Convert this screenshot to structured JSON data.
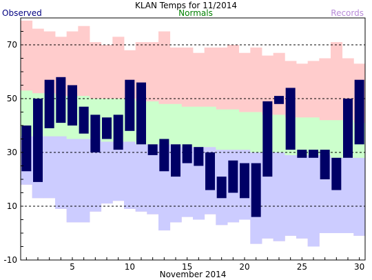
{
  "chart_data": {
    "type": "bar",
    "title": "KLAN Temps for 11/2014",
    "xlabel": "November 2014",
    "ylabel": "",
    "ylim": [
      -10,
      80
    ],
    "xlim": [
      0.5,
      30.5
    ],
    "y_ticks": [
      "-10",
      "10",
      "30",
      "50",
      "70"
    ],
    "x_ticks": [
      "5",
      "10",
      "15",
      "20",
      "25",
      "30"
    ],
    "grid": "horizontal dashed at y ticks",
    "legend": [
      {
        "label": "Observed",
        "color": "#000080",
        "placement": "top-left"
      },
      {
        "label": "Normals",
        "color": "#008000",
        "placement": "top-center"
      },
      {
        "label": "Records",
        "color": "#b88ad8",
        "placement": "top-right"
      }
    ],
    "days": [
      1,
      2,
      3,
      4,
      5,
      6,
      7,
      8,
      9,
      10,
      11,
      12,
      13,
      14,
      15,
      16,
      17,
      18,
      19,
      20,
      21,
      22,
      23,
      24,
      25,
      26,
      27,
      28,
      29,
      30
    ],
    "series": [
      {
        "name": "Records",
        "color": "#ffcccc",
        "high": [
          79,
          76,
          75,
          73,
          75,
          77,
          71,
          70,
          73,
          68,
          71,
          71,
          75,
          69,
          69,
          67,
          69,
          69,
          70,
          67,
          69,
          66,
          67,
          64,
          63,
          64,
          65,
          71,
          65,
          63
        ],
        "low": [
          18,
          13,
          13,
          9,
          4,
          4,
          8,
          11,
          12,
          9,
          8,
          7,
          1,
          4,
          6,
          5,
          7,
          3,
          4,
          5,
          -4,
          -2,
          -3,
          -1,
          -2,
          -5,
          0,
          0,
          0,
          -1
        ]
      },
      {
        "name": "Normals",
        "color": "#ccffcc",
        "high": [
          53,
          52,
          52,
          51,
          51,
          51,
          50,
          50,
          50,
          50,
          49,
          49,
          48,
          48,
          47,
          47,
          47,
          46,
          46,
          45,
          45,
          44,
          44,
          43,
          43,
          43,
          42,
          42,
          42,
          41
        ],
        "low": [
          36,
          36,
          36,
          36,
          35,
          35,
          35,
          34,
          34,
          34,
          33,
          33,
          33,
          33,
          32,
          32,
          32,
          31,
          31,
          31,
          30,
          30,
          30,
          29,
          29,
          29,
          29,
          28,
          28,
          28
        ]
      },
      {
        "name": "Observed",
        "color": "#000066",
        "high": [
          40,
          50,
          57,
          58,
          55,
          47,
          44,
          43,
          44,
          57,
          56,
          33,
          35,
          33,
          33,
          32,
          30,
          21,
          27,
          26,
          26,
          49,
          51,
          54,
          31,
          31,
          31,
          28,
          50,
          57
        ],
        "low": [
          23,
          19,
          39,
          41,
          40,
          37,
          30,
          35,
          31,
          38,
          33,
          29,
          23,
          21,
          26,
          25,
          16,
          13,
          15,
          13,
          6,
          21,
          48,
          31,
          28,
          28,
          20,
          16,
          28,
          33
        ]
      }
    ]
  }
}
